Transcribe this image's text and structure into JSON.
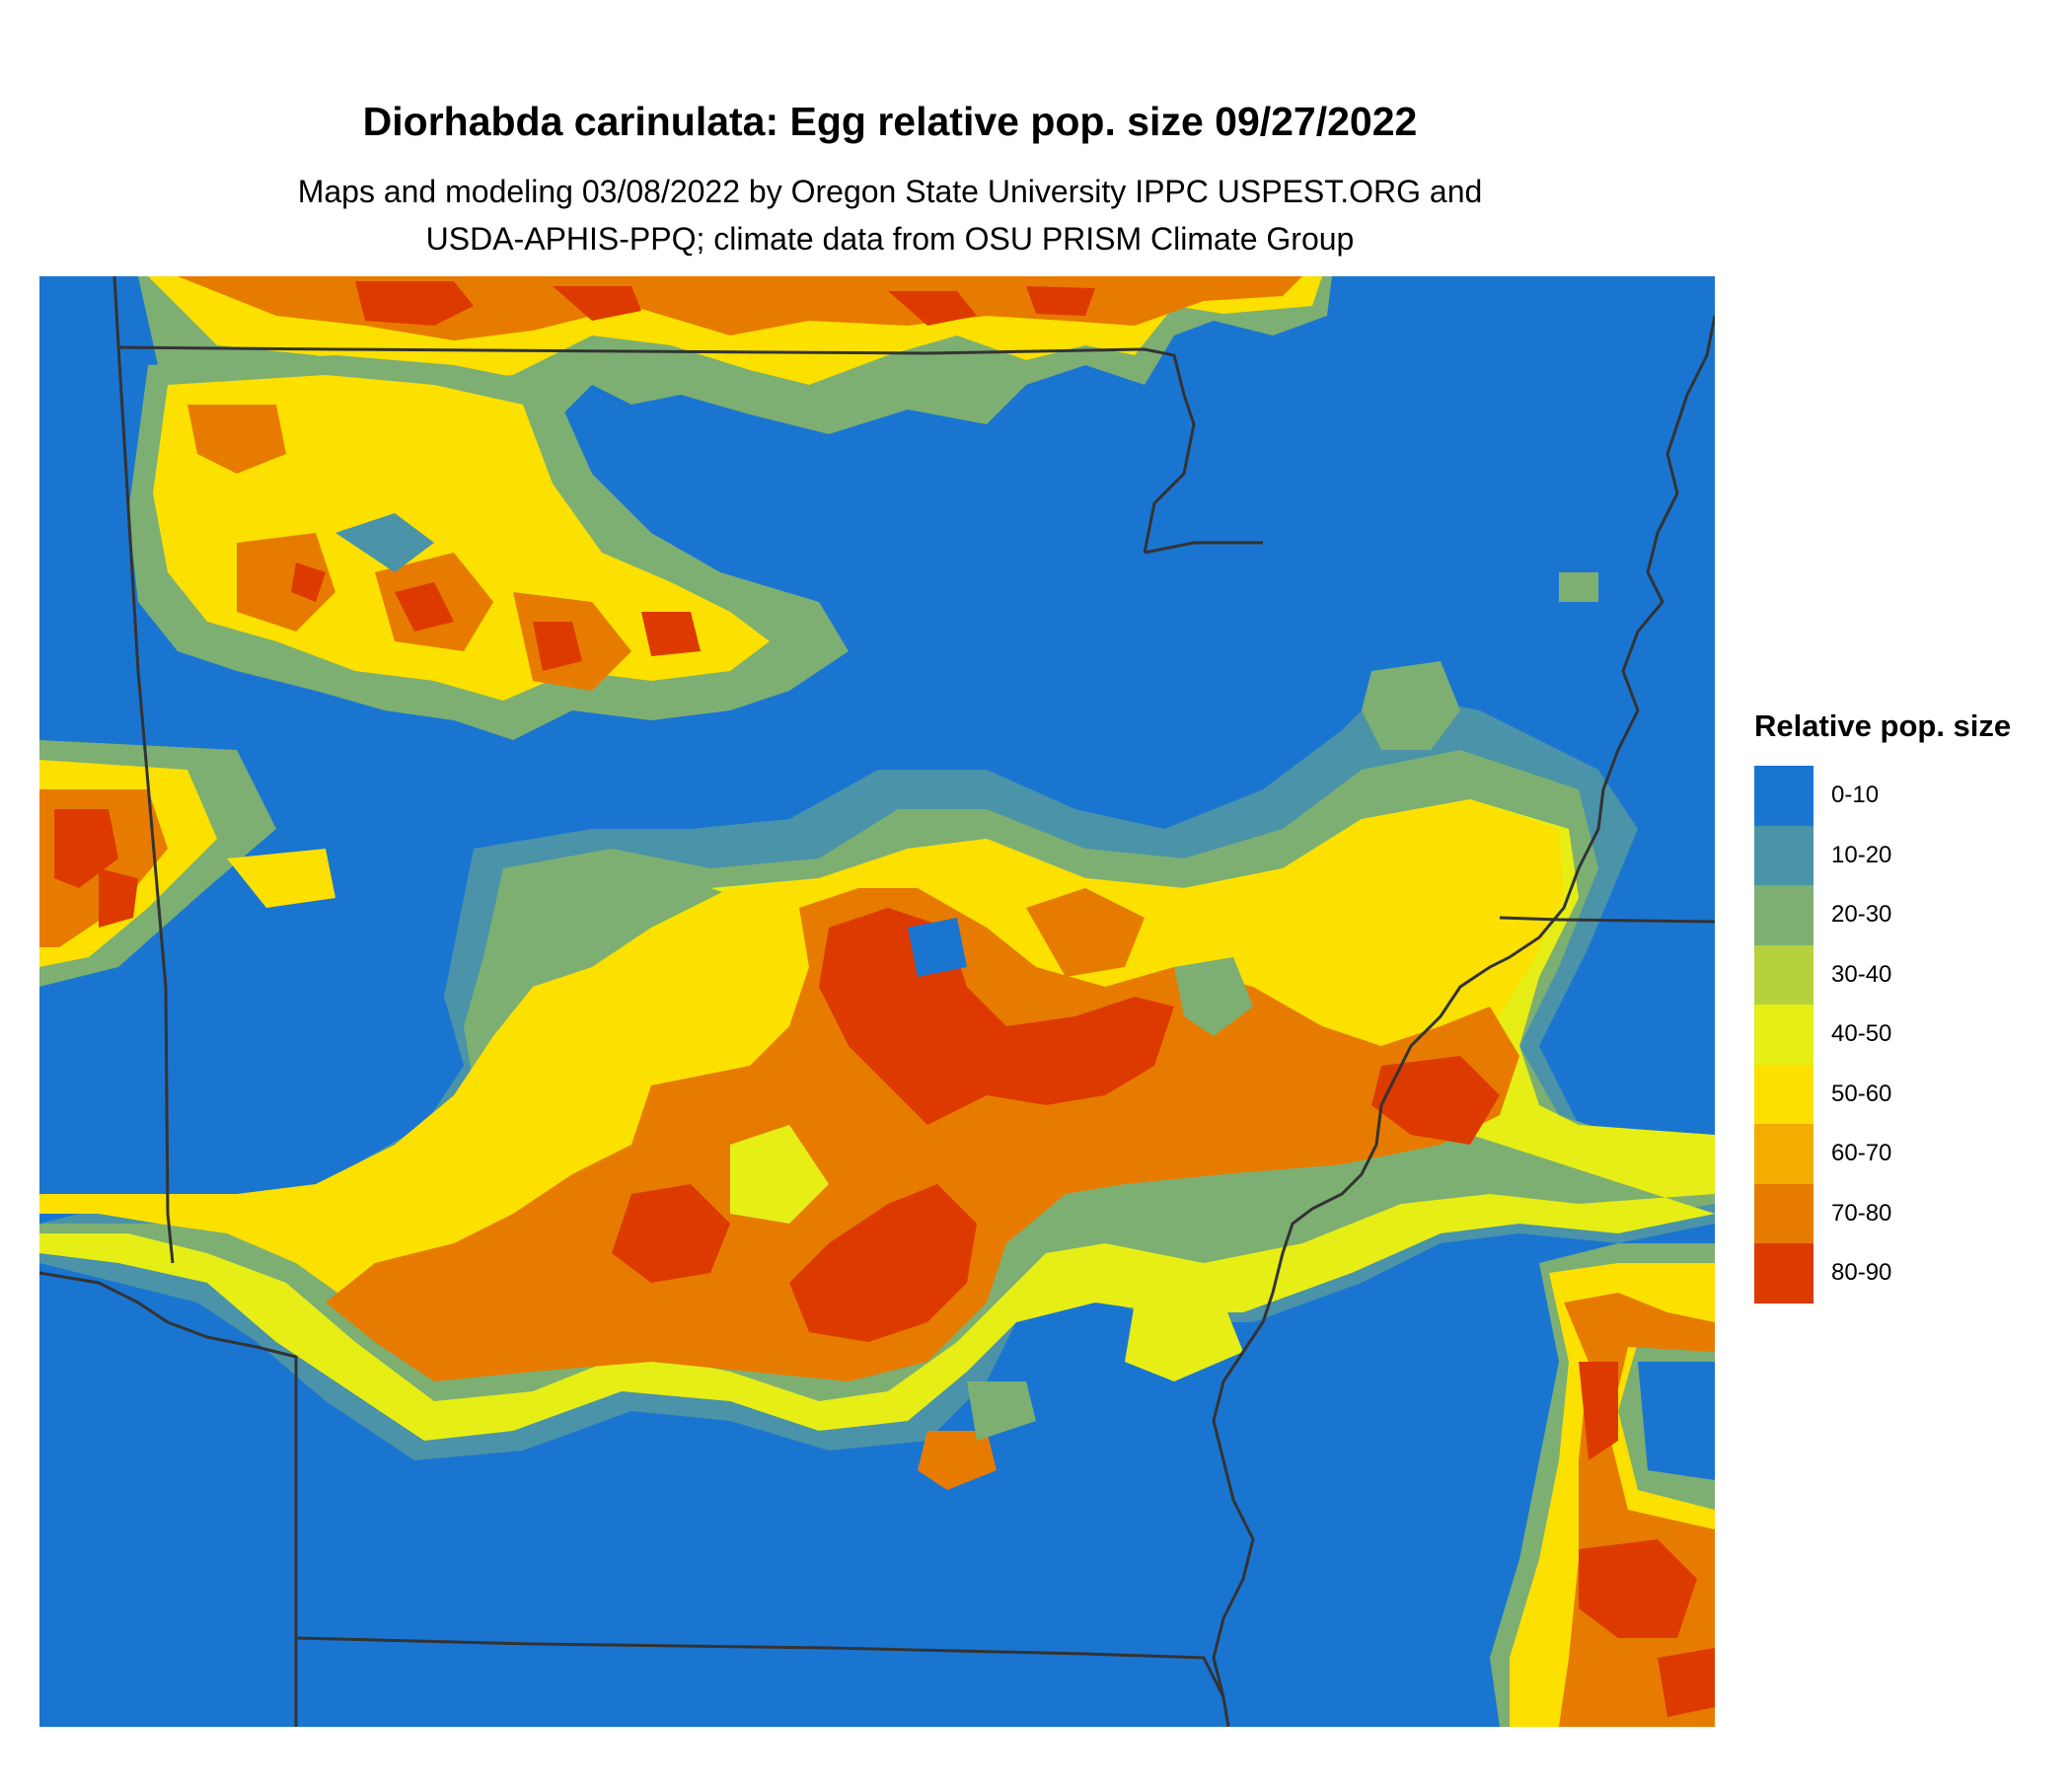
{
  "header": {
    "title": "Diorhabda carinulata: Egg relative pop. size 09/27/2022",
    "subtitle_line1": "Maps and modeling 03/08/2022 by Oregon State University IPPC USPEST.ORG and",
    "subtitle_line2": "USDA-APHIS-PPQ; climate data from OSU PRISM Climate Group"
  },
  "legend": {
    "title": "Relative pop. size",
    "items": [
      {
        "label": "0-10",
        "color": "#1a75d1"
      },
      {
        "label": "10-20",
        "color": "#4a93a8"
      },
      {
        "label": "20-30",
        "color": "#7daf72"
      },
      {
        "label": "30-40",
        "color": "#b5d13e"
      },
      {
        "label": "40-50",
        "color": "#e6ee16"
      },
      {
        "label": "50-60",
        "color": "#fbe000"
      },
      {
        "label": "60-70",
        "color": "#f2ad00"
      },
      {
        "label": "70-80",
        "color": "#e77b00"
      },
      {
        "label": "80-90",
        "color": "#dd3a00"
      }
    ]
  },
  "map": {
    "background_class": "0-10",
    "boundary_color": "#333333"
  }
}
